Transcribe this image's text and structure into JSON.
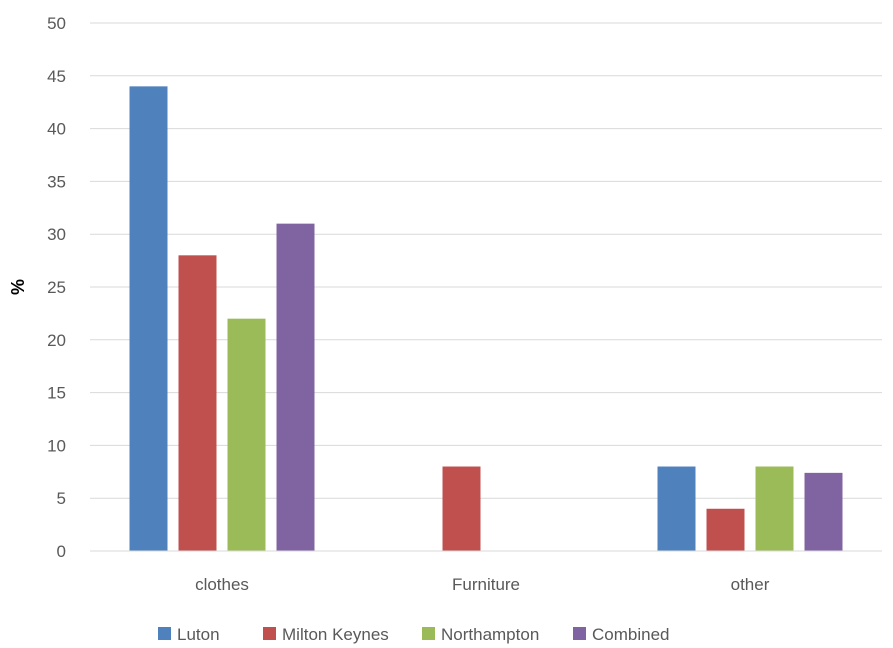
{
  "chart_data": {
    "type": "bar",
    "title": "",
    "xlabel": "",
    "ylabel": "%",
    "ylim": [
      0,
      50
    ],
    "yticks": [
      0,
      5,
      10,
      15,
      20,
      25,
      30,
      35,
      40,
      45,
      50
    ],
    "categories": [
      "clothes",
      "Furniture",
      "other"
    ],
    "series": [
      {
        "name": "Luton",
        "color": "#4F81BD",
        "values": [
          44,
          null,
          8
        ]
      },
      {
        "name": "Milton Keynes",
        "color": "#C0504D",
        "values": [
          28,
          8,
          4
        ]
      },
      {
        "name": "Northampton",
        "color": "#9BBB59",
        "values": [
          22,
          null,
          8
        ]
      },
      {
        "name": "Combined",
        "color": "#8064A2",
        "values": [
          31,
          null,
          7.4
        ]
      }
    ],
    "grid": true,
    "legend": "bottom"
  }
}
